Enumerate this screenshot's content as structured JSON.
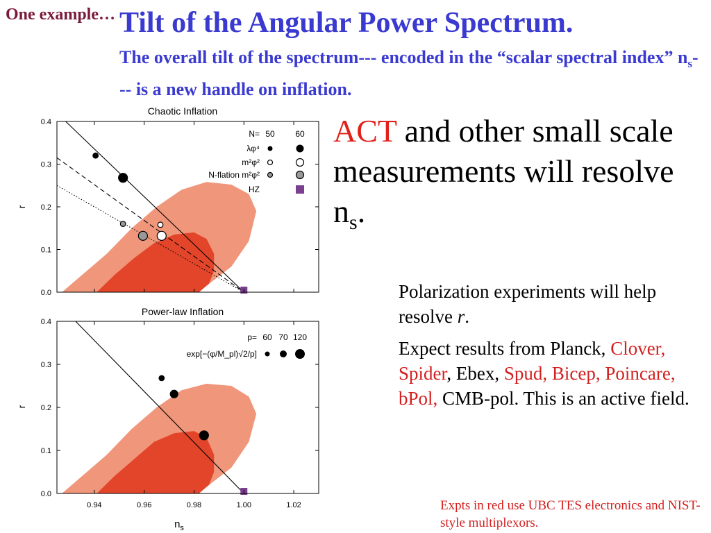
{
  "corner_label": "One example…",
  "title": "Tilt of the Angular Power Spectrum.",
  "subtitle": {
    "part1": "The overall tilt of the spectrum--- encoded in the “scalar spectral index” n",
    "sub": "s",
    "part2": "--- is a new handle on inflation."
  },
  "act_text": {
    "red": "ACT",
    "rest": " and other small scale measurements will resolve n",
    "sub": "s",
    "end": "."
  },
  "polarization": {
    "para1_a": "Polarization experiments will help resolve ",
    "para1_italic": "r",
    "para1_end": ".",
    "p2_a": "Expect results from Planck, ",
    "p2_red1": "Clover, Spider",
    "p2_b": ", Ebex, ",
    "p2_red2": "Spud, Bicep, Poincare, bPol,",
    "p2_c": " CMB-pol.  This is an active field."
  },
  "note": "Expts in red use UBC TES electronics and NIST-style multiplexors.",
  "colors": {
    "contour_outer": "#f0967a",
    "contour_inner": "#e2452a",
    "hz_marker": "#7b3f8f",
    "title_blue": "#3a3ad0",
    "accent_red": "#e0211b"
  },
  "chart_data": [
    {
      "type": "scatter",
      "title": "Chaotic Inflation",
      "xlabel": "n",
      "xlabel_sub": "s",
      "ylabel": "r",
      "xlim": [
        0.925,
        1.03
      ],
      "ylim": [
        0.0,
        0.4
      ],
      "yticks": [
        "0.0",
        "0.1",
        "0.2",
        "0.3",
        "0.4"
      ],
      "legend": {
        "header": "N=",
        "n_values": [
          "50",
          "60"
        ],
        "rows": [
          "λφ⁴",
          "m²φ²",
          "N-flation m²φ²",
          "HZ"
        ]
      },
      "contours": {
        "outer": [
          [
            0.927,
            0.0
          ],
          [
            0.935,
            0.04
          ],
          [
            0.945,
            0.09
          ],
          [
            0.955,
            0.15
          ],
          [
            0.965,
            0.2
          ],
          [
            0.975,
            0.24
          ],
          [
            0.985,
            0.258
          ],
          [
            0.995,
            0.252
          ],
          [
            1.002,
            0.23
          ],
          [
            1.005,
            0.19
          ],
          [
            1.002,
            0.12
          ],
          [
            0.995,
            0.06
          ],
          [
            0.985,
            0.015
          ],
          [
            0.975,
            0.0
          ]
        ],
        "inner": [
          [
            0.941,
            0.0
          ],
          [
            0.948,
            0.04
          ],
          [
            0.956,
            0.08
          ],
          [
            0.964,
            0.115
          ],
          [
            0.972,
            0.135
          ],
          [
            0.98,
            0.14
          ],
          [
            0.985,
            0.125
          ],
          [
            0.988,
            0.09
          ],
          [
            0.988,
            0.05
          ],
          [
            0.986,
            0.02
          ],
          [
            0.982,
            0.0
          ]
        ]
      },
      "lines": [
        {
          "name": "λφ⁴",
          "style": "solid",
          "x": [
            0.9285,
            1.0
          ],
          "y": [
            0.4,
            0.0
          ]
        },
        {
          "name": "m²φ²",
          "style": "dashed",
          "x": [
            0.925,
            1.0
          ],
          "y": [
            0.315,
            0.0
          ]
        },
        {
          "name": "N-flation m²φ²",
          "style": "dotted",
          "x": [
            0.925,
            1.0
          ],
          "y": [
            0.25,
            0.0
          ]
        }
      ],
      "points": [
        {
          "x": 0.9405,
          "y": 0.32,
          "fill": "black",
          "size": "small"
        },
        {
          "x": 0.9515,
          "y": 0.268,
          "fill": "black",
          "size": "large"
        },
        {
          "x": 0.9515,
          "y": 0.16,
          "fill": "gray",
          "size": "small"
        },
        {
          "x": 0.9665,
          "y": 0.158,
          "fill": "white",
          "size": "small"
        },
        {
          "x": 0.9595,
          "y": 0.132,
          "fill": "gray",
          "size": "large"
        },
        {
          "x": 0.967,
          "y": 0.132,
          "fill": "white",
          "size": "large"
        },
        {
          "x": 1.0,
          "y": 0.0,
          "fill": "purple-square",
          "size": "small"
        }
      ]
    },
    {
      "type": "scatter",
      "title": "Power-law Inflation",
      "xlabel": "n",
      "xlabel_sub": "s",
      "ylabel": "r",
      "xlim": [
        0.925,
        1.03
      ],
      "ylim": [
        0.0,
        0.4
      ],
      "xticks": [
        "0.94",
        "0.96",
        "0.98",
        "1.00",
        "1.02"
      ],
      "yticks": [
        "0.0",
        "0.1",
        "0.2",
        "0.3",
        "0.4"
      ],
      "legend": {
        "header": "p=",
        "p_values": [
          "60",
          "70",
          "120"
        ],
        "row": "exp[−(φ/M_pl)√2/p]"
      },
      "contours": {
        "outer": [
          [
            0.927,
            0.0
          ],
          [
            0.935,
            0.04
          ],
          [
            0.945,
            0.09
          ],
          [
            0.955,
            0.15
          ],
          [
            0.965,
            0.2
          ],
          [
            0.975,
            0.24
          ],
          [
            0.985,
            0.255
          ],
          [
            0.995,
            0.25
          ],
          [
            1.002,
            0.225
          ],
          [
            1.005,
            0.185
          ],
          [
            1.002,
            0.12
          ],
          [
            0.995,
            0.06
          ],
          [
            0.985,
            0.015
          ],
          [
            0.975,
            0.0
          ]
        ],
        "inner": [
          [
            0.941,
            0.0
          ],
          [
            0.948,
            0.04
          ],
          [
            0.956,
            0.08
          ],
          [
            0.964,
            0.12
          ],
          [
            0.972,
            0.14
          ],
          [
            0.98,
            0.145
          ],
          [
            0.985,
            0.13
          ],
          [
            0.988,
            0.09
          ],
          [
            0.988,
            0.05
          ],
          [
            0.986,
            0.02
          ],
          [
            0.982,
            0.0
          ]
        ]
      },
      "lines": [
        {
          "name": "power-law",
          "style": "solid",
          "x": [
            0.9325,
            1.0
          ],
          "y": [
            0.4,
            0.0
          ]
        }
      ],
      "points": [
        {
          "x": 0.967,
          "y": 0.268,
          "fill": "black",
          "size": "small"
        },
        {
          "x": 0.972,
          "y": 0.231,
          "fill": "black",
          "size": "medium"
        },
        {
          "x": 0.984,
          "y": 0.135,
          "fill": "black",
          "size": "large"
        },
        {
          "x": 1.0,
          "y": 0.0,
          "fill": "purple-square",
          "size": "small"
        }
      ]
    }
  ]
}
